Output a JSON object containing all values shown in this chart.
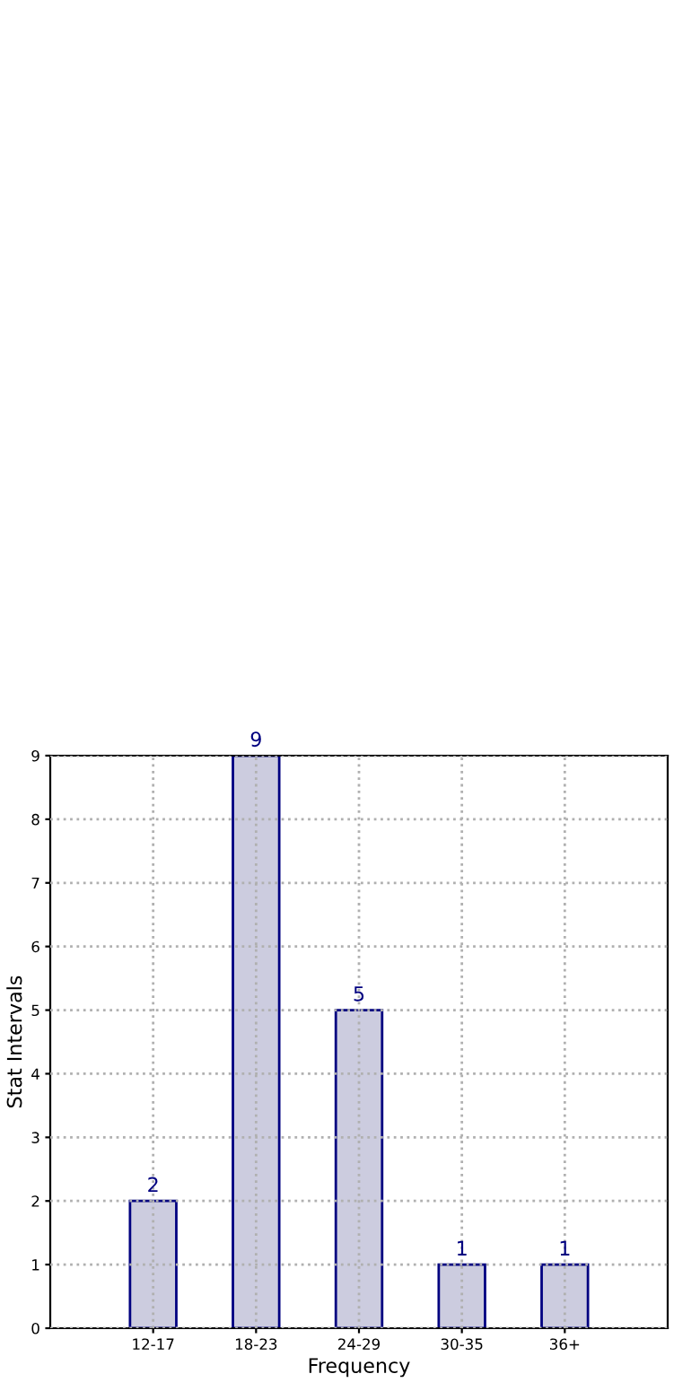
{
  "chart_data": {
    "type": "bar",
    "xlabel": "Frequency",
    "ylabel": "Stat Intervals",
    "categories": [
      "12-17",
      "18-23",
      "24-29",
      "30-35",
      "36+"
    ],
    "values": [
      2,
      9,
      5,
      1,
      1
    ],
    "color": "#ccccdf",
    "ylim": [
      0,
      9
    ],
    "yticks": [
      0,
      1,
      2,
      3,
      4,
      5,
      6,
      7,
      8,
      9
    ],
    "grid": true,
    "line_style": "dotted",
    "data_labels": true
  }
}
